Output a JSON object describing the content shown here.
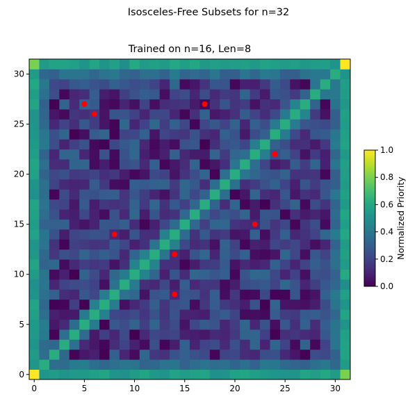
{
  "figure": {
    "suptitle": "Isosceles-Free Subsets for n=32"
  },
  "chart_data": {
    "type": "heatmap",
    "title": "Trained on n=16, Len=8",
    "xlabel": "",
    "ylabel": "",
    "n": 32,
    "x_ticks": [
      0,
      5,
      10,
      15,
      20,
      25,
      30
    ],
    "y_ticks": [
      0,
      5,
      10,
      15,
      20,
      25,
      30
    ],
    "colormap": "viridis",
    "color_range": [
      0.0,
      1.0
    ],
    "colorbar": {
      "label": "Normalized Priority",
      "ticks": [
        0.0,
        0.2,
        0.4,
        0.6,
        0.8,
        1.0
      ],
      "tick_labels": [
        "0.0",
        "0.2",
        "0.4",
        "0.6",
        "0.8",
        "1.0"
      ]
    },
    "value_description": "Symmetric priority matrix; diagonal and edges high, corner cells ~1.0, off-diagonal interior low (0.0-0.35).",
    "corner_values": {
      "bottom_left": 1.0,
      "top_right": 1.0,
      "bottom_right_corner_adjacent": 0.8
    },
    "diagonal_value": 0.62,
    "edge_value": 0.55,
    "selected_points": [
      {
        "x": 5,
        "y": 27
      },
      {
        "x": 6,
        "y": 26
      },
      {
        "x": 17,
        "y": 27
      },
      {
        "x": 24,
        "y": 22
      },
      {
        "x": 22,
        "y": 15
      },
      {
        "x": 8,
        "y": 14
      },
      {
        "x": 14,
        "y": 12
      },
      {
        "x": 14,
        "y": 8
      }
    ],
    "point_color": "#ff0000",
    "grid": false,
    "legend": "none"
  }
}
